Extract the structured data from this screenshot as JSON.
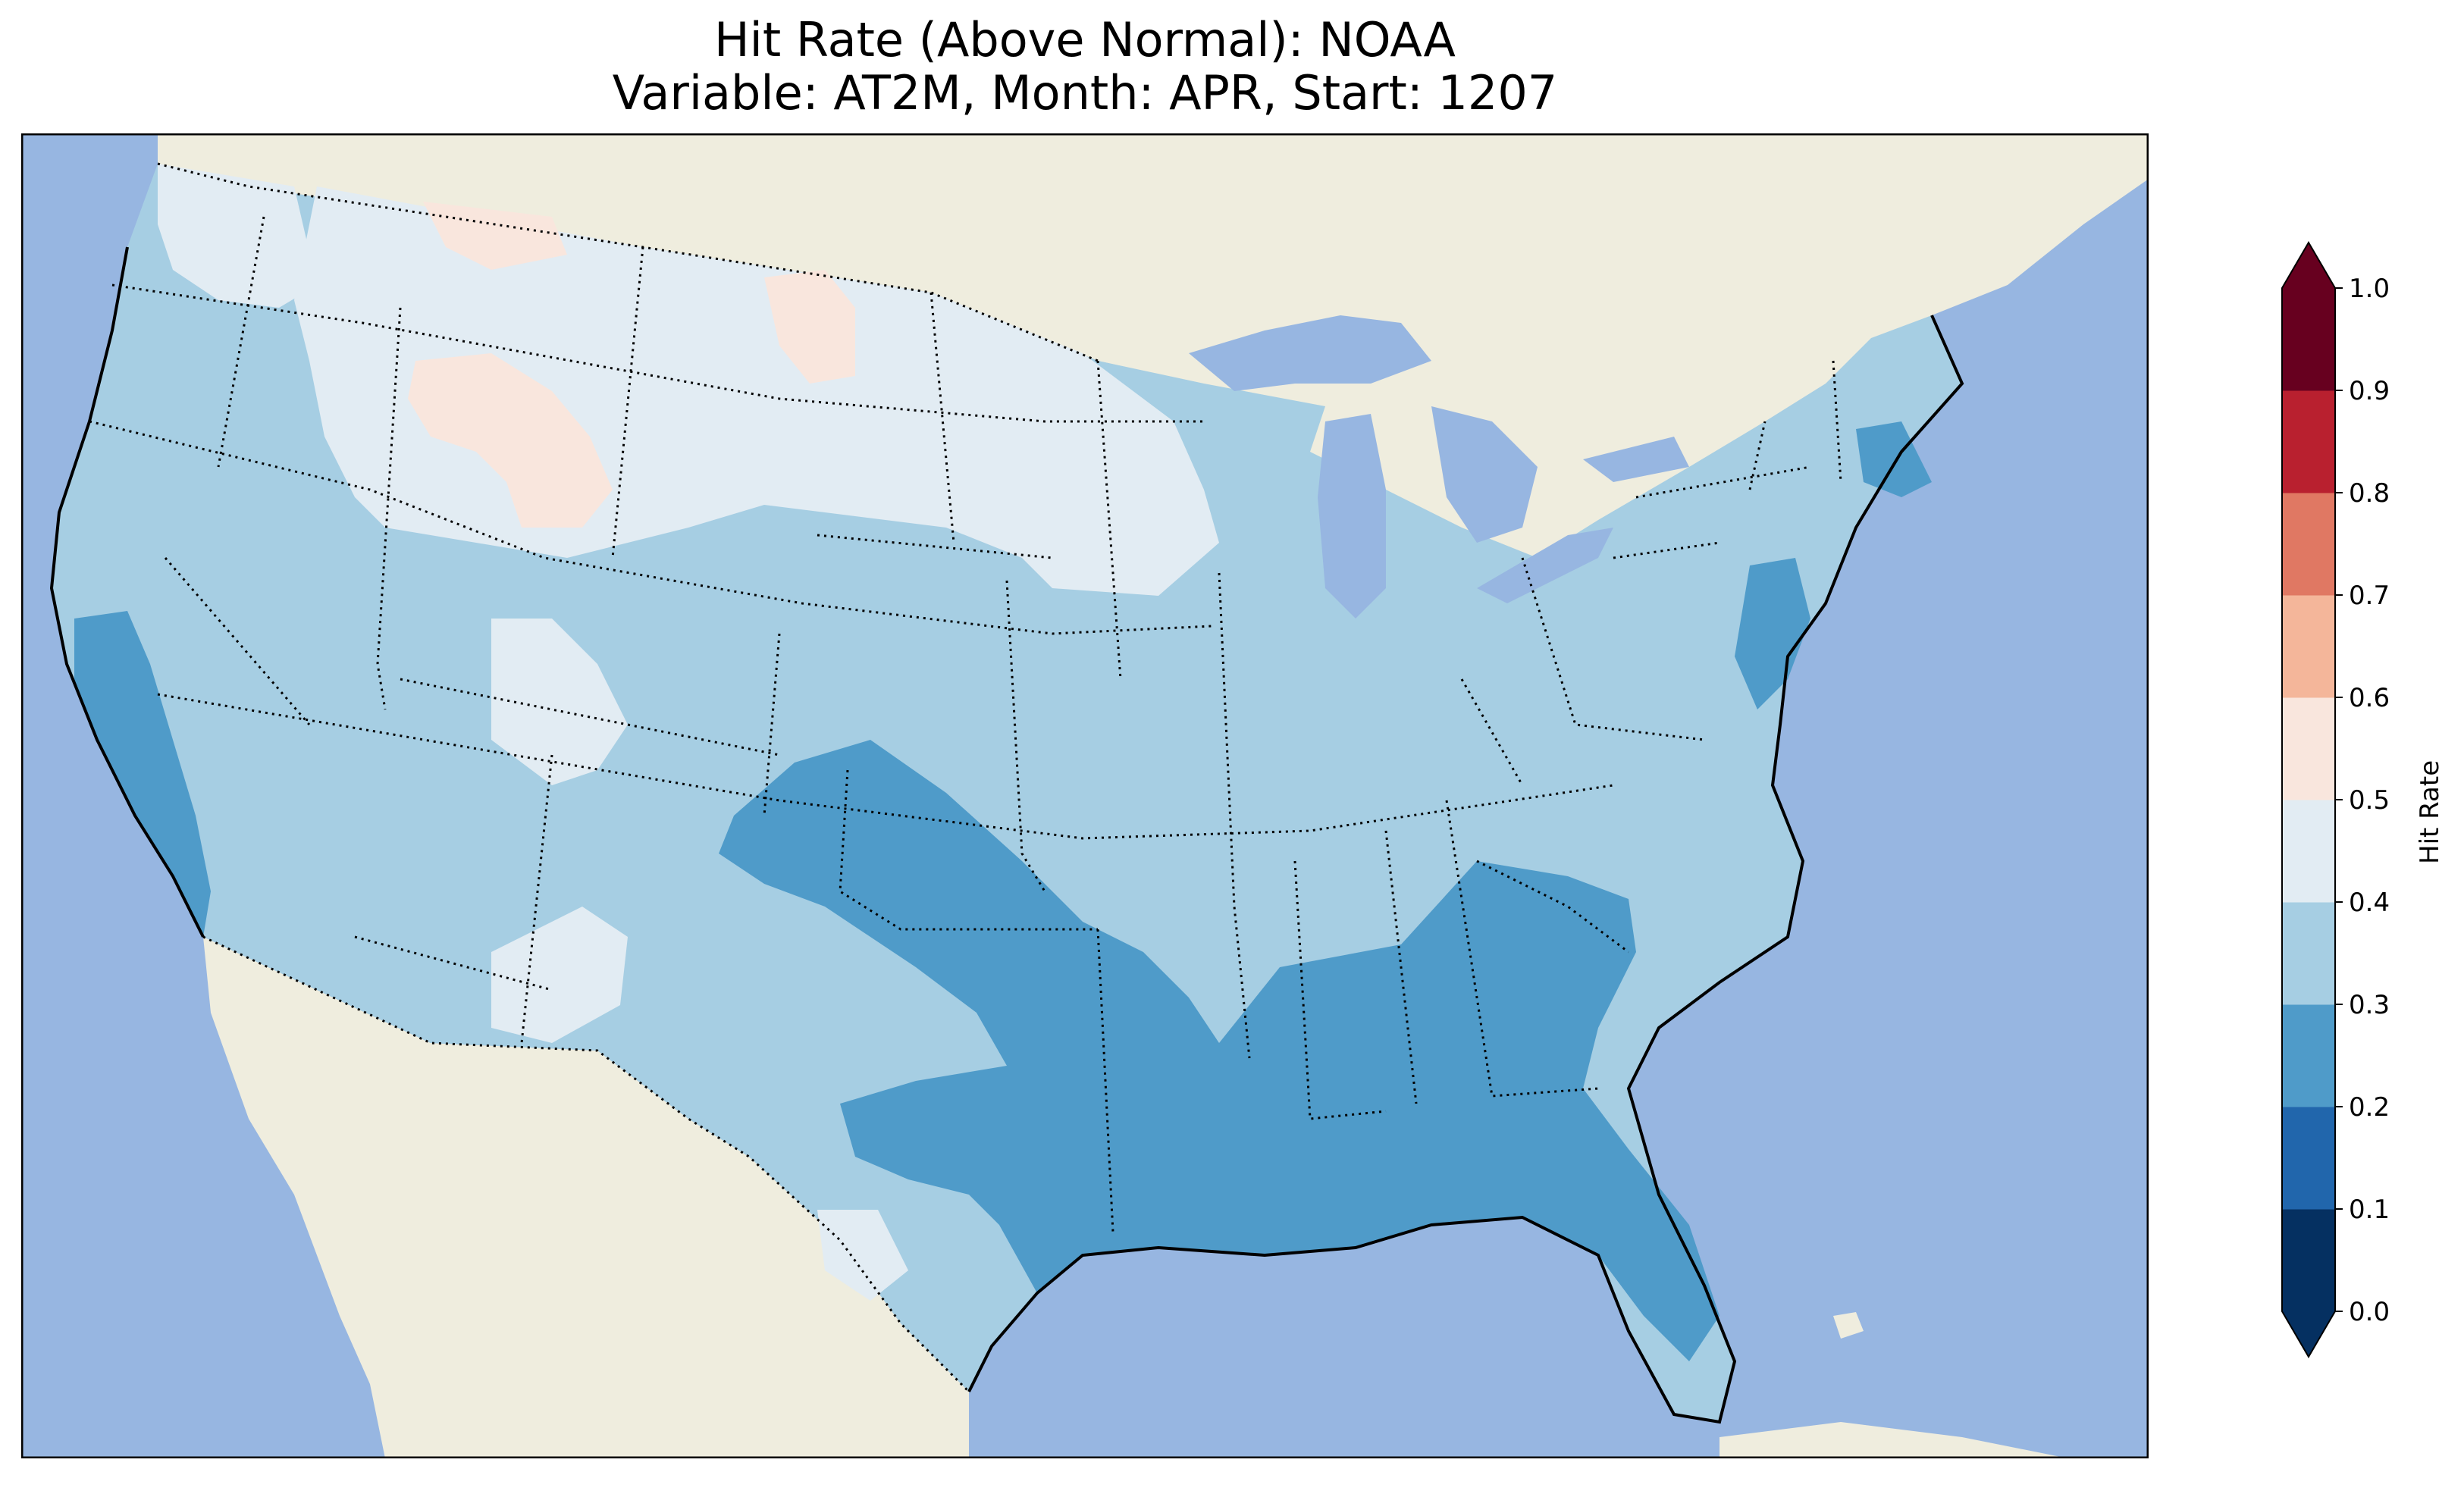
{
  "title": {
    "line1": "Hit Rate (Above Normal): NOAA",
    "line2": "Variable: AT2M, Month: APR, Start: 1207"
  },
  "map": {
    "region": "Contiguous United States",
    "ocean_color": "#97b6e1",
    "land_color": "#efedde",
    "borders": "coastlines solid, state and country borders dotted",
    "dominant_level_color": "#a6cee3"
  },
  "colorbar": {
    "label": "Hit Rate",
    "ticks": [
      "0.0",
      "0.1",
      "0.2",
      "0.3",
      "0.4",
      "0.5",
      "0.6",
      "0.7",
      "0.8",
      "0.9",
      "1.0"
    ],
    "levels": [
      {
        "range": [
          0.0,
          0.1
        ],
        "color": "#053061"
      },
      {
        "range": [
          0.1,
          0.2
        ],
        "color": "#2166ac"
      },
      {
        "range": [
          0.2,
          0.3
        ],
        "color": "#4f9bc9"
      },
      {
        "range": [
          0.3,
          0.4
        ],
        "color": "#a6cee3"
      },
      {
        "range": [
          0.4,
          0.5
        ],
        "color": "#e2ecf3"
      },
      {
        "range": [
          0.5,
          0.6
        ],
        "color": "#f9e6dd"
      },
      {
        "range": [
          0.6,
          0.7
        ],
        "color": "#f4b69a"
      },
      {
        "range": [
          0.7,
          0.8
        ],
        "color": "#e07863"
      },
      {
        "range": [
          0.8,
          0.9
        ],
        "color": "#b9202f"
      },
      {
        "range": [
          0.9,
          1.0
        ],
        "color": "#67001f"
      }
    ],
    "extend": "both"
  },
  "regions": [
    {
      "name": "Southeast / Gulf Coast",
      "level": "0.2-0.3"
    },
    {
      "name": "Southern Plains",
      "level": "0.2-0.3"
    },
    {
      "name": "Central California coast",
      "level": "0.2-0.3"
    },
    {
      "name": "Mid-Atlantic coast",
      "level": "0.2-0.3"
    },
    {
      "name": "Northern Plains / Montana",
      "level": "0.4-0.5"
    },
    {
      "name": "Western Montana / Idaho",
      "level": "0.5-0.6"
    },
    {
      "name": "Remaining CONUS",
      "level": "0.3-0.4"
    }
  ]
}
